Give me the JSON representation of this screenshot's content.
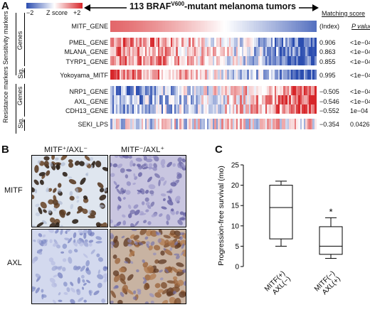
{
  "panels": {
    "a": "A",
    "b": "B",
    "c": "C"
  },
  "colorbar": {
    "min": "−2",
    "max": "+2",
    "label": "Z score",
    "low_color": "#2b4db0",
    "mid_color": "#ffffff",
    "high_color": "#d7262a"
  },
  "heatmap": {
    "title": "113 BRAF",
    "title_sup": "V600",
    "title_suffix": "-mutant melanoma tumors",
    "matching_score_header": "Matching score",
    "index_label": "(Index)",
    "pvalue_header": "P value",
    "groups": {
      "sensitivity": "Sensitivity markers",
      "resistance": "Resistance markers",
      "genes": "Genes",
      "sig": "Sig."
    },
    "rows": [
      {
        "name": "MITF_GENE",
        "score": "",
        "pvalue": ""
      },
      {
        "name": "PMEL_GENE",
        "score": "0.906",
        "pvalue": "<1e−04"
      },
      {
        "name": "MLANA_GENE",
        "score": "0.863",
        "pvalue": "<1e−04"
      },
      {
        "name": "TYRP1_GENE",
        "score": "0.855",
        "pvalue": "<1e−04"
      },
      {
        "name": "Yokoyama_MITF",
        "score": "0.995",
        "pvalue": "<1e−04"
      },
      {
        "name": "NRP1_GENE",
        "score": "−0.505",
        "pvalue": "<1e−04"
      },
      {
        "name": "AXL_GENE",
        "score": "−0.546",
        "pvalue": "<1e−04"
      },
      {
        "name": "CDH13_GENE",
        "score": "−0.552",
        "pvalue": "1e−04"
      },
      {
        "name": "SEKI_LPS",
        "score": "−0.354",
        "pvalue": "0.0426"
      }
    ]
  },
  "ihc": {
    "col1": "MITF⁺/AXL⁻",
    "col2": "MITF⁻/AXL⁺",
    "row1": "MITF",
    "row2": "AXL"
  },
  "chart_data": {
    "type": "boxplot",
    "ylabel": "Progression-free survival (mo)",
    "ylim": [
      0,
      25
    ],
    "yticks": [
      "0",
      "5",
      "10",
      "15",
      "20",
      "25"
    ],
    "categories": [
      "MITF(+)\nAXL(−)",
      "MITF(−)\nAXL(+)"
    ],
    "boxes": [
      {
        "min": 5,
        "q1": 6.8,
        "median": 14.5,
        "q3": 20,
        "max": 21
      },
      {
        "min": 2,
        "q1": 3,
        "median": 5,
        "q3": 9.8,
        "max": 12
      }
    ],
    "annotation": "*"
  }
}
